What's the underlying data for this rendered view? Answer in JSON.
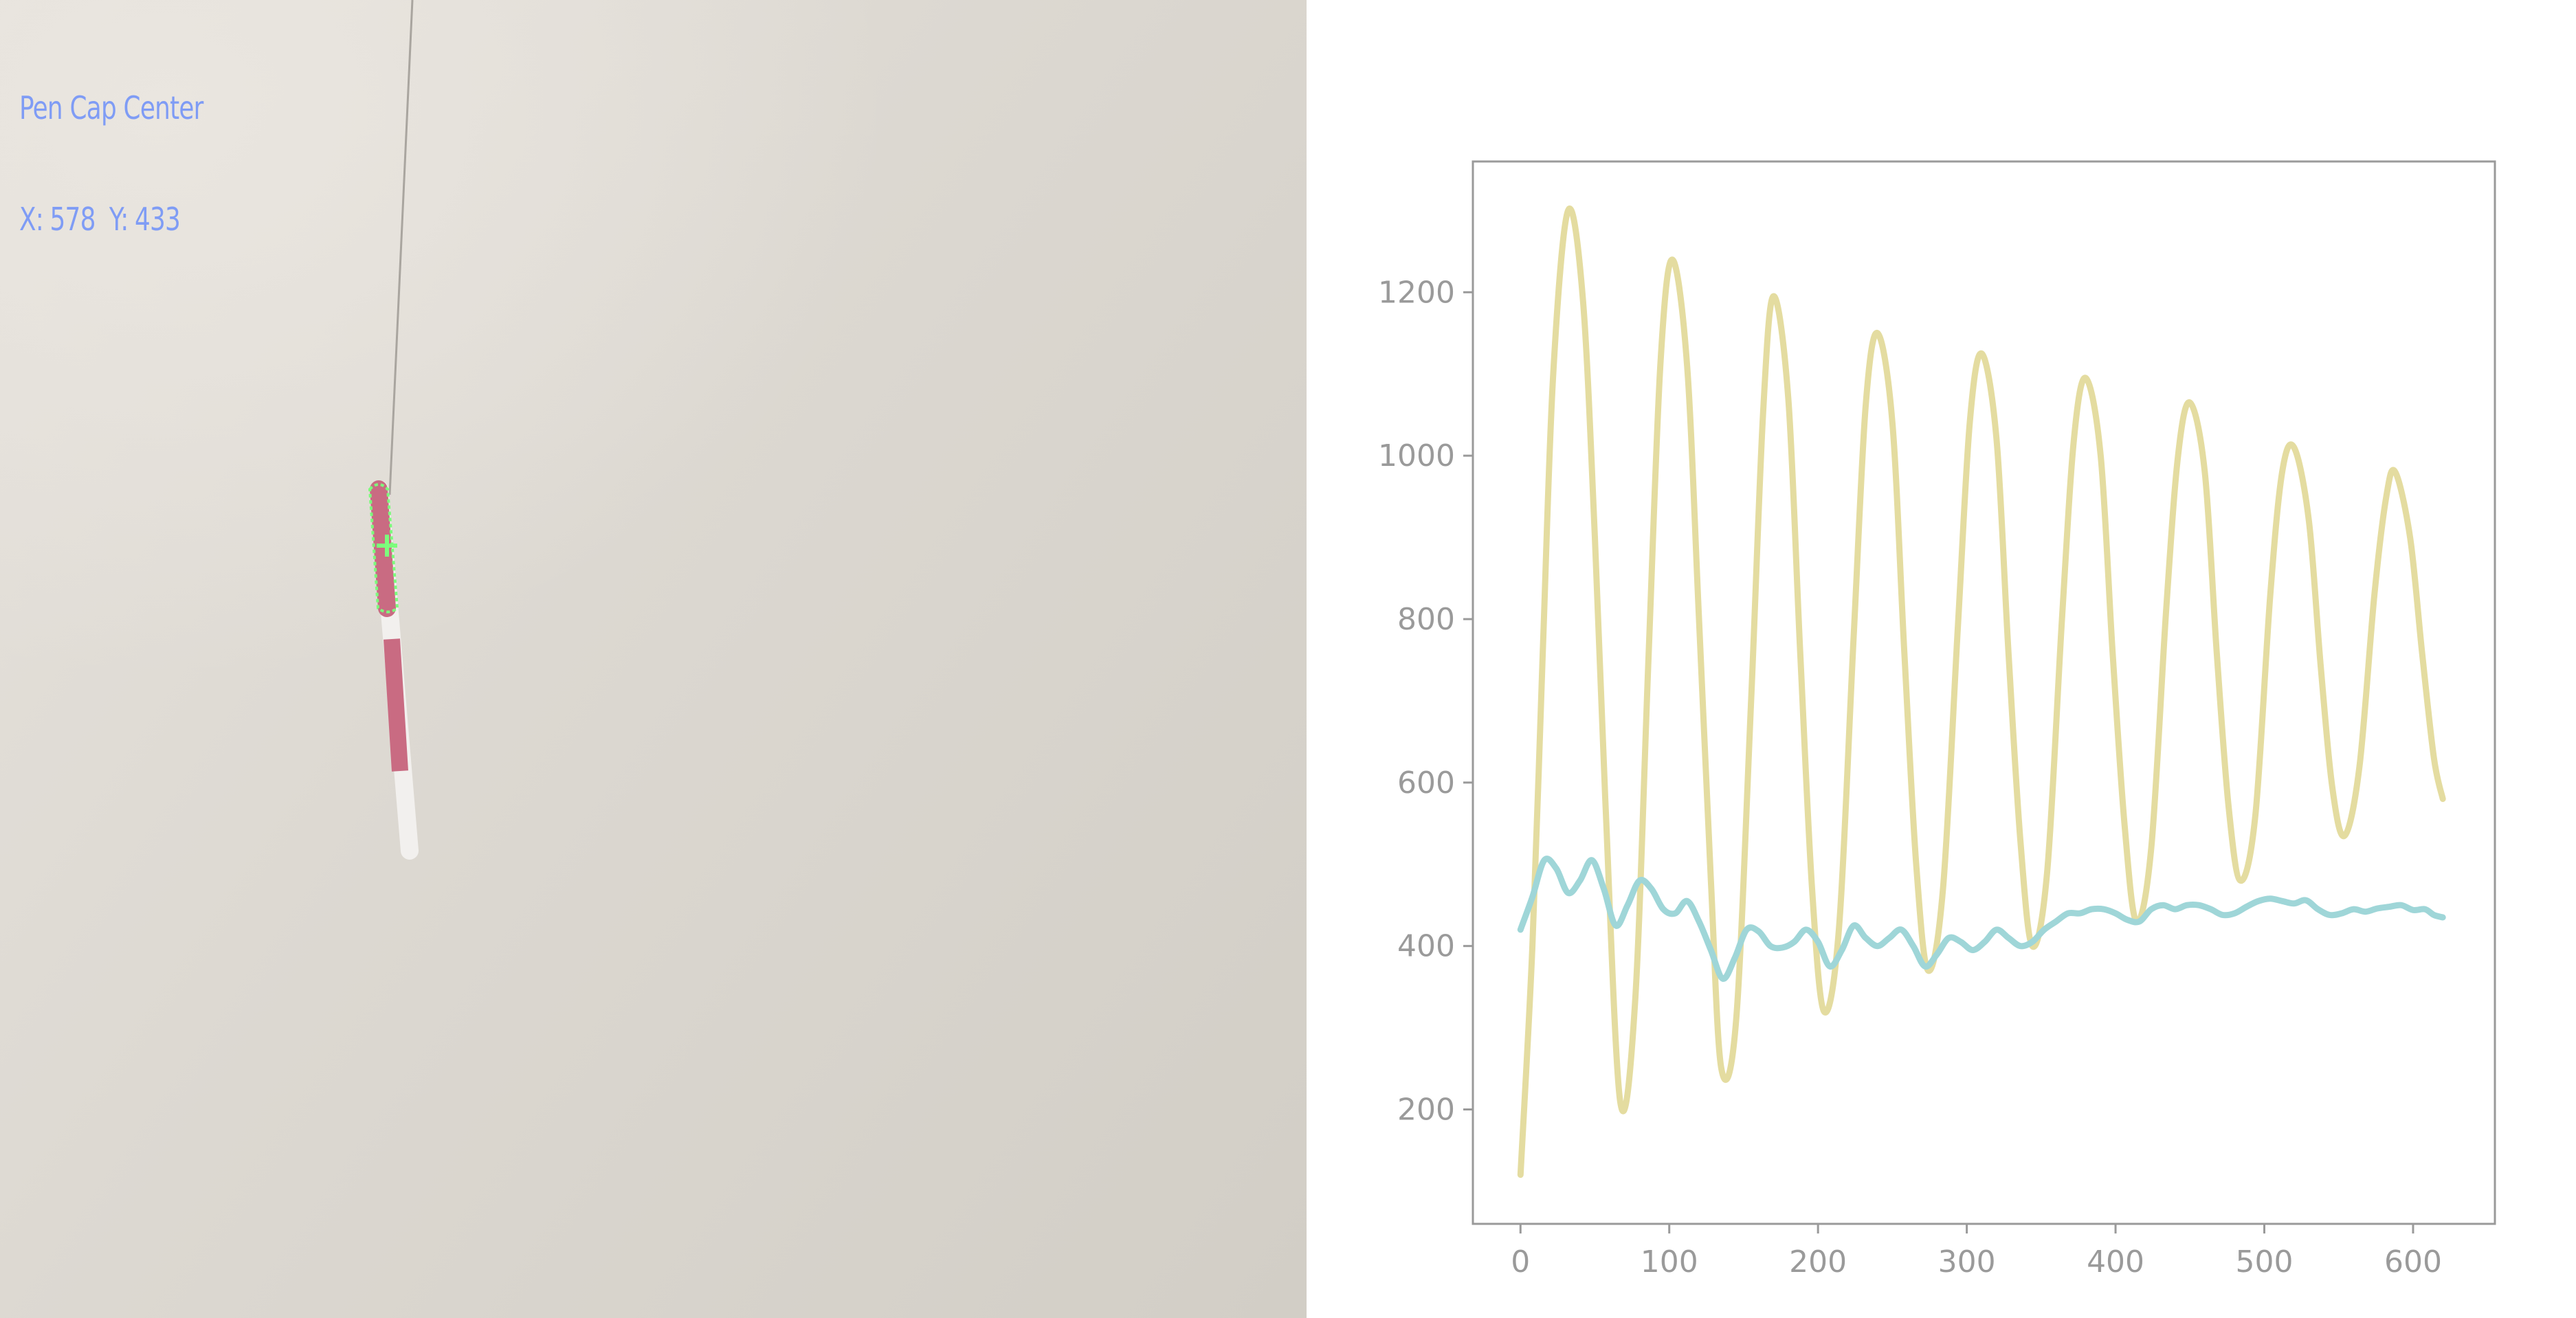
{
  "overlay": {
    "label": "Pen Cap Center",
    "x_label": "X:",
    "x_value": "578",
    "y_label": "Y:",
    "y_value": "433"
  },
  "colors": {
    "overlay_text": "#7f9cf5",
    "marker": "#7cfc7c",
    "pen_pink": "#c96b82",
    "series_x": "#e4dca0",
    "series_y": "#9fd6d8",
    "axis": "#9a9a9a"
  },
  "icons": {
    "marker": "crosshair-icon"
  },
  "chart_data": {
    "type": "line",
    "title": "",
    "xlabel": "",
    "ylabel": "",
    "xlim": [
      -32,
      655
    ],
    "ylim": [
      60,
      1360
    ],
    "xticks": [
      0,
      100,
      200,
      300,
      400,
      500,
      600
    ],
    "yticks": [
      200,
      400,
      600,
      800,
      1000,
      1200
    ],
    "grid": false,
    "legend": "none",
    "series": [
      {
        "color": "#e4dca0",
        "points": [
          [
            0,
            120
          ],
          [
            8,
            400
          ],
          [
            15,
            760
          ],
          [
            22,
            1100
          ],
          [
            32,
            1300
          ],
          [
            42,
            1190
          ],
          [
            50,
            900
          ],
          [
            57,
            580
          ],
          [
            67,
            210
          ],
          [
            77,
            330
          ],
          [
            86,
            750
          ],
          [
            94,
            1110
          ],
          [
            102,
            1240
          ],
          [
            112,
            1110
          ],
          [
            120,
            800
          ],
          [
            128,
            480
          ],
          [
            135,
            250
          ],
          [
            145,
            310
          ],
          [
            155,
            700
          ],
          [
            163,
            1050
          ],
          [
            170,
            1195
          ],
          [
            180,
            1070
          ],
          [
            188,
            760
          ],
          [
            196,
            470
          ],
          [
            204,
            320
          ],
          [
            214,
            420
          ],
          [
            224,
            780
          ],
          [
            232,
            1060
          ],
          [
            240,
            1150
          ],
          [
            250,
            1040
          ],
          [
            258,
            760
          ],
          [
            266,
            500
          ],
          [
            274,
            370
          ],
          [
            284,
            470
          ],
          [
            294,
            790
          ],
          [
            302,
            1040
          ],
          [
            310,
            1125
          ],
          [
            320,
            1020
          ],
          [
            328,
            760
          ],
          [
            336,
            530
          ],
          [
            344,
            400
          ],
          [
            354,
            490
          ],
          [
            364,
            800
          ],
          [
            372,
            1020
          ],
          [
            380,
            1095
          ],
          [
            390,
            1000
          ],
          [
            398,
            760
          ],
          [
            406,
            550
          ],
          [
            414,
            430
          ],
          [
            424,
            520
          ],
          [
            434,
            810
          ],
          [
            442,
            1000
          ],
          [
            450,
            1065
          ],
          [
            460,
            980
          ],
          [
            468,
            760
          ],
          [
            476,
            570
          ],
          [
            484,
            480
          ],
          [
            494,
            560
          ],
          [
            504,
            830
          ],
          [
            512,
            980
          ],
          [
            520,
            1010
          ],
          [
            530,
            920
          ],
          [
            538,
            740
          ],
          [
            546,
            590
          ],
          [
            554,
            535
          ],
          [
            564,
            620
          ],
          [
            574,
            830
          ],
          [
            582,
            950
          ],
          [
            588,
            980
          ],
          [
            598,
            900
          ],
          [
            606,
            760
          ],
          [
            614,
            630
          ],
          [
            620,
            580
          ]
        ]
      },
      {
        "color": "#9fd6d8",
        "points": [
          [
            0,
            420
          ],
          [
            8,
            460
          ],
          [
            16,
            505
          ],
          [
            24,
            495
          ],
          [
            32,
            465
          ],
          [
            40,
            480
          ],
          [
            48,
            505
          ],
          [
            56,
            470
          ],
          [
            64,
            425
          ],
          [
            72,
            450
          ],
          [
            80,
            480
          ],
          [
            88,
            470
          ],
          [
            96,
            445
          ],
          [
            104,
            440
          ],
          [
            112,
            455
          ],
          [
            120,
            430
          ],
          [
            128,
            395
          ],
          [
            136,
            360
          ],
          [
            144,
            385
          ],
          [
            152,
            420
          ],
          [
            160,
            418
          ],
          [
            168,
            400
          ],
          [
            176,
            398
          ],
          [
            184,
            405
          ],
          [
            192,
            420
          ],
          [
            200,
            405
          ],
          [
            208,
            375
          ],
          [
            216,
            395
          ],
          [
            224,
            425
          ],
          [
            232,
            410
          ],
          [
            240,
            400
          ],
          [
            248,
            410
          ],
          [
            256,
            420
          ],
          [
            264,
            400
          ],
          [
            272,
            375
          ],
          [
            280,
            390
          ],
          [
            288,
            410
          ],
          [
            296,
            405
          ],
          [
            304,
            395
          ],
          [
            312,
            405
          ],
          [
            320,
            420
          ],
          [
            328,
            410
          ],
          [
            336,
            400
          ],
          [
            344,
            405
          ],
          [
            352,
            420
          ],
          [
            360,
            430
          ],
          [
            368,
            440
          ],
          [
            376,
            440
          ],
          [
            384,
            445
          ],
          [
            392,
            445
          ],
          [
            400,
            440
          ],
          [
            408,
            432
          ],
          [
            416,
            430
          ],
          [
            424,
            445
          ],
          [
            432,
            450
          ],
          [
            440,
            445
          ],
          [
            448,
            450
          ],
          [
            456,
            450
          ],
          [
            464,
            445
          ],
          [
            472,
            438
          ],
          [
            480,
            440
          ],
          [
            488,
            448
          ],
          [
            496,
            455
          ],
          [
            504,
            458
          ],
          [
            512,
            455
          ],
          [
            520,
            452
          ],
          [
            528,
            456
          ],
          [
            536,
            445
          ],
          [
            544,
            438
          ],
          [
            552,
            440
          ],
          [
            560,
            445
          ],
          [
            568,
            442
          ],
          [
            576,
            446
          ],
          [
            584,
            448
          ],
          [
            592,
            450
          ],
          [
            600,
            444
          ],
          [
            608,
            445
          ],
          [
            614,
            438
          ],
          [
            620,
            435
          ]
        ]
      }
    ]
  }
}
